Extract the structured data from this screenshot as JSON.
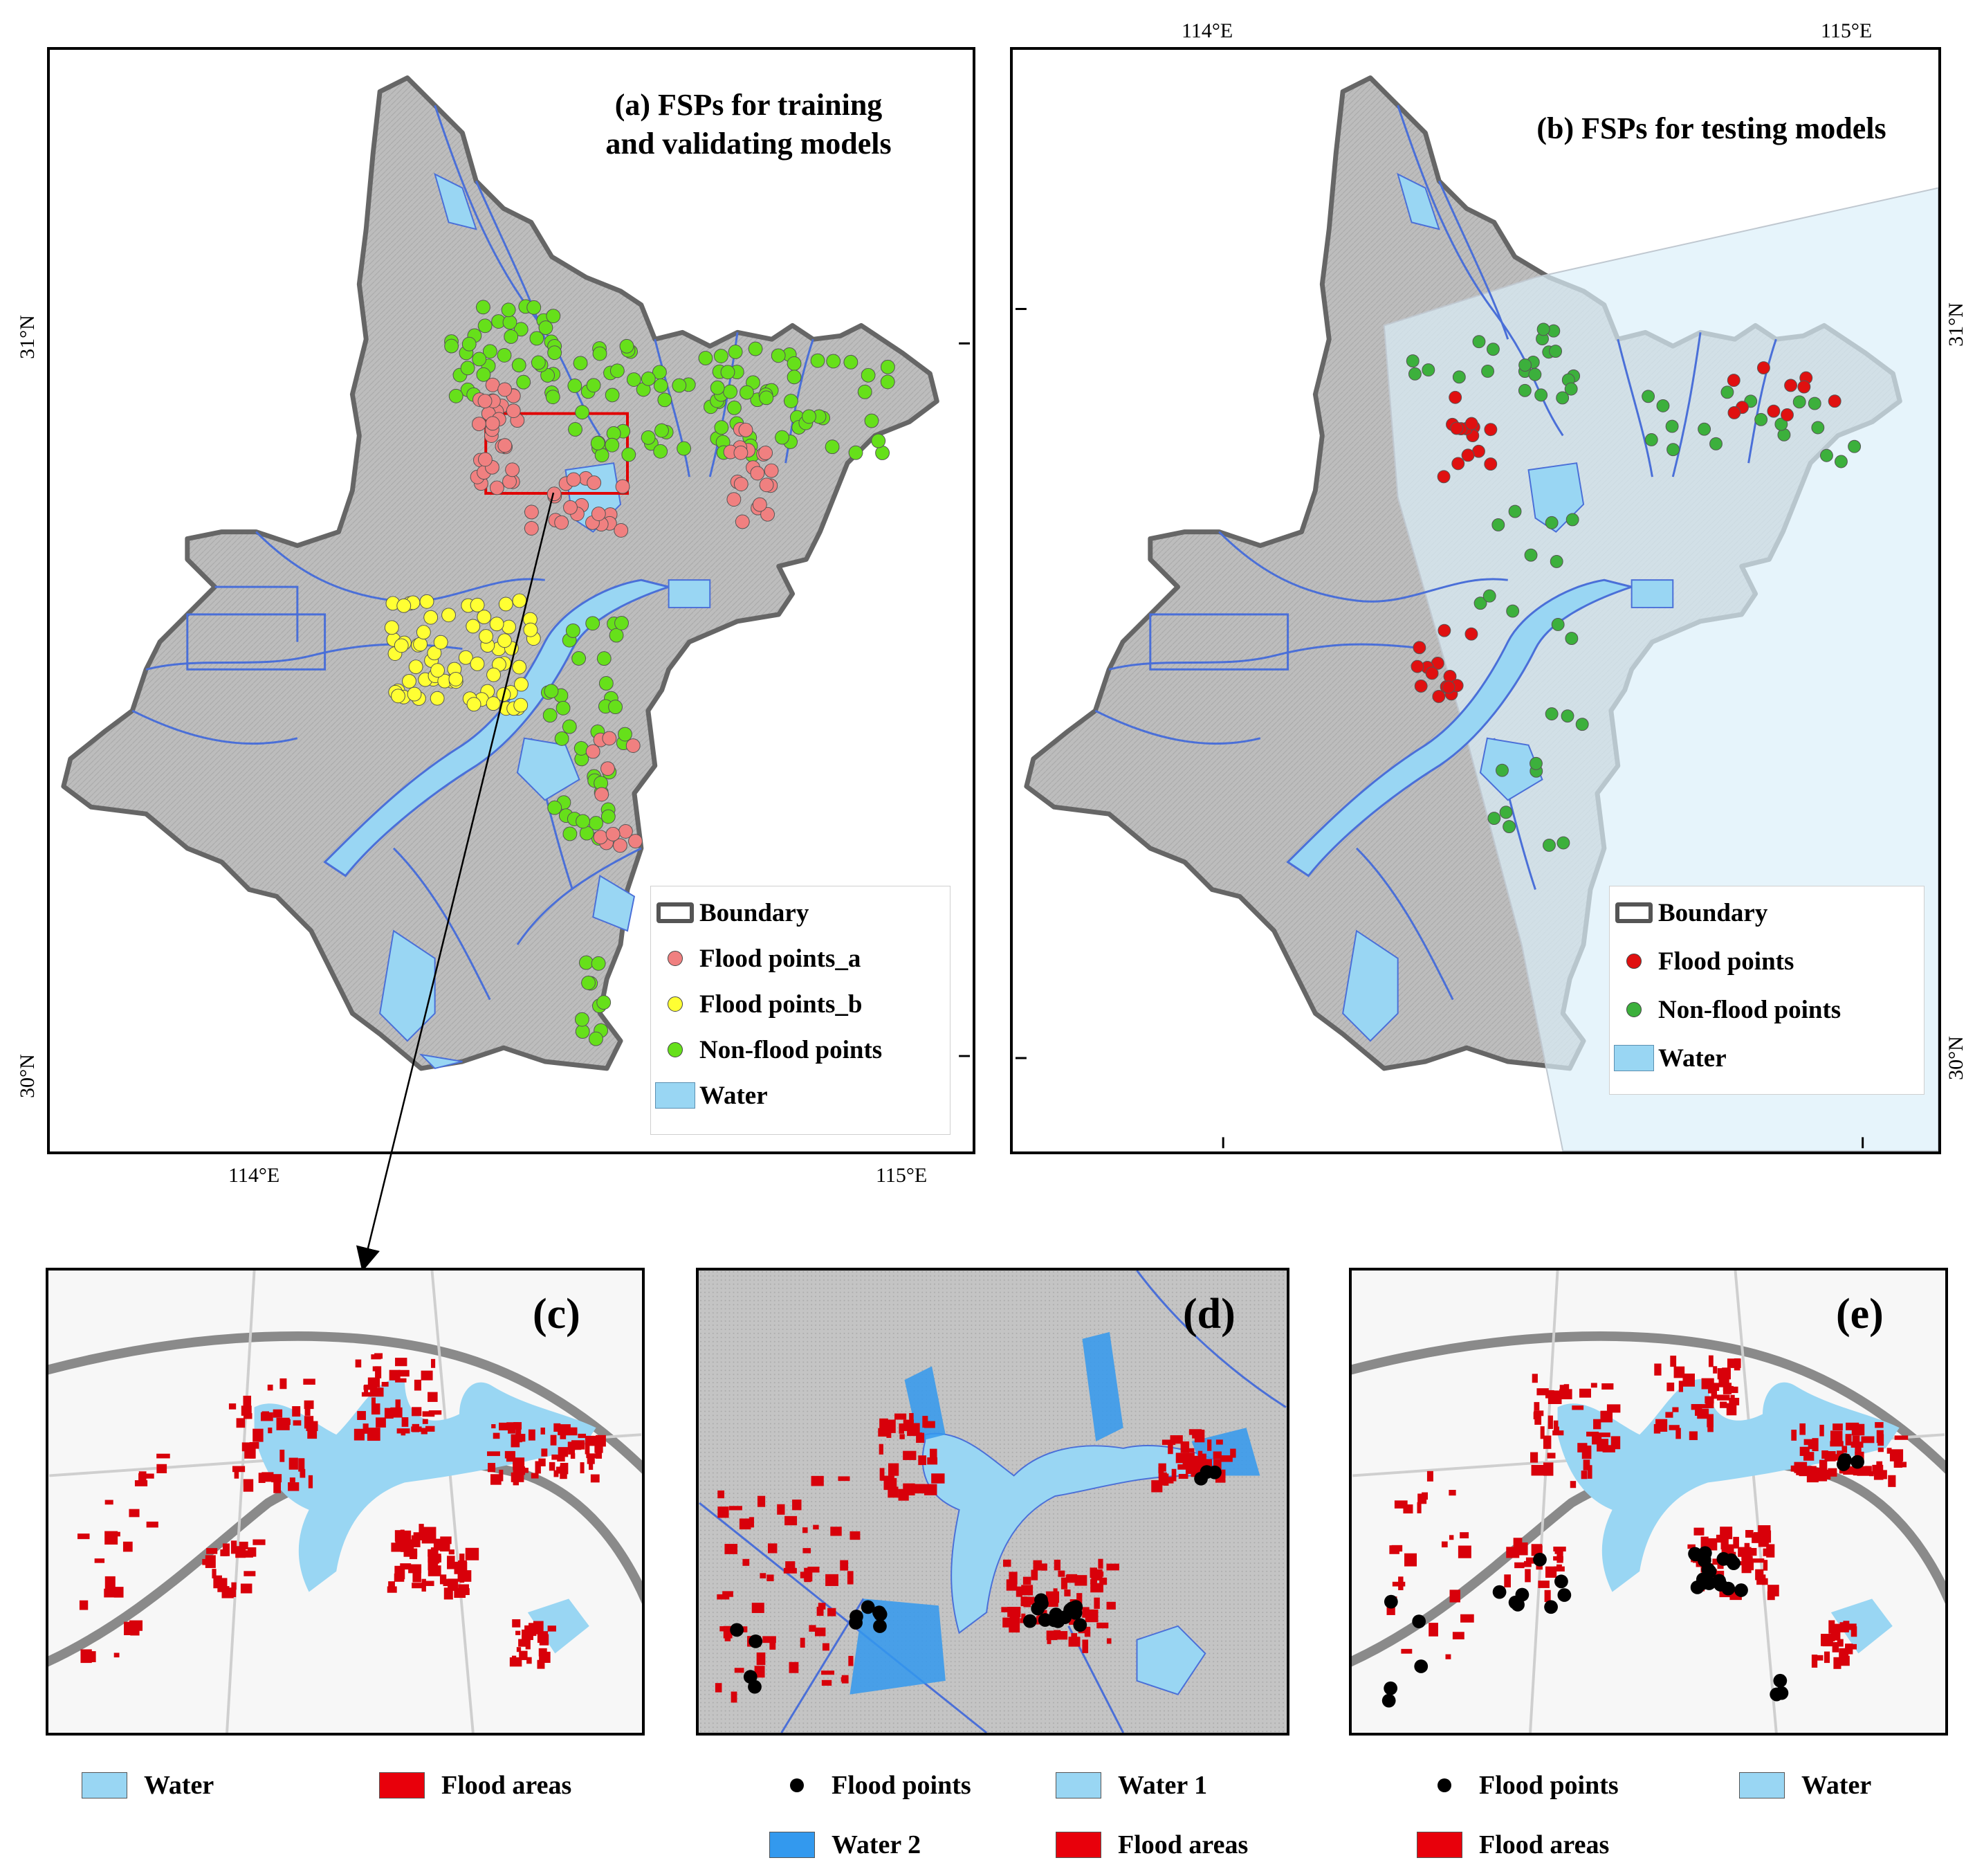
{
  "panel_a": {
    "title": "(a) FSPs for training\nand validating models",
    "lat_labels": [
      "31°N",
      "30°N"
    ],
    "lon_labels": [
      "114°E",
      "115°E"
    ],
    "legend": [
      {
        "label": "Boundary",
        "symbol": "boundary"
      },
      {
        "label": "Flood points_a",
        "symbol": "dot",
        "color": "#f08080"
      },
      {
        "label": "Flood points_b",
        "symbol": "dot",
        "color": "#ffff33"
      },
      {
        "label": "Non-flood points",
        "symbol": "dot",
        "color": "#66e01a"
      },
      {
        "label": "Water",
        "symbol": "water",
        "color": "#99d6f3"
      }
    ]
  },
  "panel_b": {
    "title": "(b) FSPs for testing models",
    "lat_labels": [
      "31°N",
      "30°N"
    ],
    "lon_labels": [
      "114°E",
      "115°E"
    ],
    "legend": [
      {
        "label": "Boundary",
        "symbol": "boundary"
      },
      {
        "label": "Flood points",
        "symbol": "dot",
        "color": "#e01010"
      },
      {
        "label": "Non-flood points",
        "symbol": "dot",
        "color": "#3cb03c"
      },
      {
        "label": "Water",
        "symbol": "water",
        "color": "#99d6f3"
      }
    ]
  },
  "panel_c": {
    "label": "(c)"
  },
  "panel_d": {
    "label": "(d)"
  },
  "panel_e": {
    "label": "(e)"
  },
  "legend_c": [
    {
      "label": "Water",
      "type": "swatch",
      "color": "#99d6f3"
    },
    {
      "label": "Flood areas",
      "type": "swatch",
      "color": "#e8000b"
    }
  ],
  "legend_d": [
    {
      "label": "Flood points",
      "type": "dot",
      "color": "#000000"
    },
    {
      "label": "Water 1",
      "type": "swatch",
      "color": "#99d6f3"
    },
    {
      "label": "Water 2",
      "type": "swatch",
      "color": "#3399ee"
    },
    {
      "label": "Flood areas",
      "type": "swatch",
      "color": "#e8000b"
    }
  ],
  "legend_e": [
    {
      "label": "Flood points",
      "type": "dot",
      "color": "#000000"
    },
    {
      "label": "Water",
      "type": "swatch",
      "color": "#99d6f3"
    },
    {
      "label": "Flood areas",
      "type": "swatch",
      "color": "#e8000b"
    }
  ],
  "colors": {
    "boundary": "#666666",
    "land": "#b9b9b9",
    "river": "#4a6fd8",
    "water": "#99d6f3",
    "zoom_box": "#e00000",
    "test_extent": "#dbeffa"
  }
}
